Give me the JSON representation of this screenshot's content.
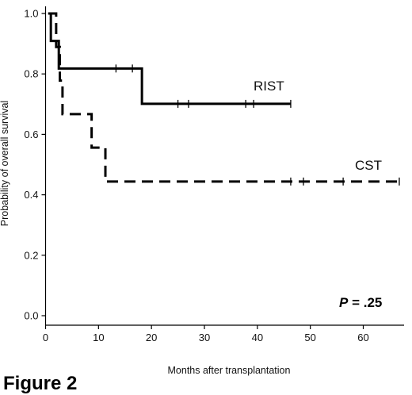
{
  "figure_label": "Figure 2",
  "chart_data": {
    "type": "line",
    "subtype": "kaplan-meier",
    "xlabel": "Months after transplantation",
    "ylabel": "Probability of overall survival",
    "xlim": [
      0,
      70
    ],
    "ylim": [
      0,
      1.0
    ],
    "x_ticks": [
      0,
      10,
      20,
      30,
      40,
      50,
      60
    ],
    "y_ticks": [
      0.0,
      0.2,
      0.4,
      0.6,
      0.8,
      1.0
    ],
    "x_tick_labels": [
      "0",
      "10",
      "20",
      "30",
      "40",
      "50",
      "60"
    ],
    "y_tick_labels": [
      "0.0",
      "0.2",
      "0.4",
      "0.6",
      "0.8",
      "1.0"
    ],
    "grid": false,
    "annotation": {
      "italic": "P",
      "rest": " = .25"
    },
    "series": [
      {
        "name": "RIST",
        "style": "solid",
        "color": "#000000",
        "steps": [
          {
            "x": 0.5,
            "y": 1.0
          },
          {
            "x": 1.0,
            "y": 0.909
          },
          {
            "x": 2.5,
            "y": 0.818
          },
          {
            "x": 18.2,
            "y": 0.701
          },
          {
            "x": 46.3,
            "y": 0.701
          }
        ],
        "censor_x": [
          13.3,
          16.4,
          25.0,
          27.0,
          37.8,
          39.3,
          46.3
        ]
      },
      {
        "name": "CST",
        "style": "dashed",
        "color": "#000000",
        "steps": [
          {
            "x": 0.5,
            "y": 1.0
          },
          {
            "x": 2.0,
            "y": 0.889
          },
          {
            "x": 2.7,
            "y": 0.778
          },
          {
            "x": 3.2,
            "y": 0.667
          },
          {
            "x": 8.7,
            "y": 0.556
          },
          {
            "x": 11.3,
            "y": 0.444
          },
          {
            "x": 66.8,
            "y": 0.444
          }
        ],
        "censor_x": [
          46.3,
          48.7,
          56.2,
          66.8
        ]
      }
    ]
  }
}
